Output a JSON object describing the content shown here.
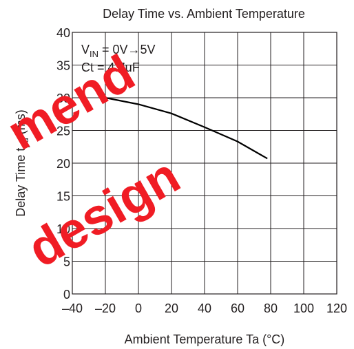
{
  "chart_data": {
    "type": "line",
    "title": "Delay Time vs. Ambient Temperature",
    "x_label": "Ambient Temperature   Ta   (°C)",
    "y_label_parts": [
      "Delay Time  t",
      "pd",
      "  (ms)"
    ],
    "annotation_parts": [
      "V",
      "IN",
      " = 0V→5V"
    ],
    "annotation": "Ct = 4.7μF",
    "watermark": [
      "mend",
      "design"
    ],
    "x": [
      -20,
      0,
      20,
      40,
      60,
      78
    ],
    "series": [
      {
        "color": "#000000",
        "values": [
          30,
          29,
          27.6,
          25.5,
          23.3,
          20.7
        ]
      }
    ],
    "xlim": [
      -40,
      120
    ],
    "xticks": [
      {
        "value": -40,
        "label": "–40"
      },
      {
        "value": -20,
        "label": "–20"
      },
      0,
      20,
      40,
      60,
      80,
      100,
      120
    ],
    "ylim": [
      0,
      40
    ],
    "yticks": [
      0,
      5,
      10,
      15,
      20,
      25,
      30,
      35,
      40
    ],
    "grid": true
  }
}
